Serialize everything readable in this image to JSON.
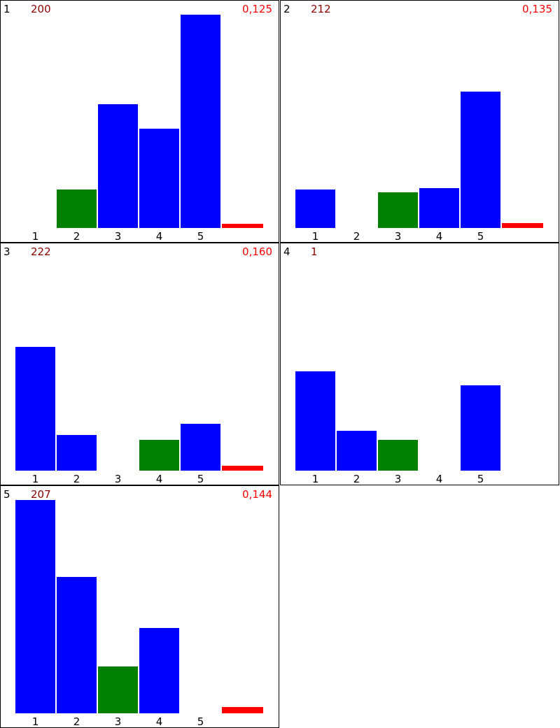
{
  "chart_data": [
    {
      "type": "bar",
      "panel_label": "1",
      "count_label": "200",
      "ratio_label": "0,125",
      "categories": [
        "1",
        "2",
        "3",
        "4",
        "5"
      ],
      "values": [
        0,
        55,
        177,
        142,
        305
      ],
      "colors": [
        "#0000ff",
        "#008000",
        "#0000ff",
        "#0000ff",
        "#0000ff"
      ],
      "red_marker": 6,
      "ylim": [
        0,
        305
      ]
    },
    {
      "type": "bar",
      "panel_label": "2",
      "count_label": "212",
      "ratio_label": "0,135",
      "categories": [
        "1",
        "2",
        "3",
        "4",
        "5"
      ],
      "values": [
        55,
        0,
        51,
        57,
        195
      ],
      "colors": [
        "#0000ff",
        "#0000ff",
        "#008000",
        "#0000ff",
        "#0000ff"
      ],
      "red_marker": 7,
      "ylim": [
        0,
        305
      ]
    },
    {
      "type": "bar",
      "panel_label": "3",
      "count_label": "222",
      "ratio_label": "0,160",
      "categories": [
        "1",
        "2",
        "3",
        "4",
        "5"
      ],
      "values": [
        177,
        51,
        0,
        44,
        67
      ],
      "colors": [
        "#0000ff",
        "#0000ff",
        "#0000ff",
        "#008000",
        "#0000ff"
      ],
      "red_marker": 7,
      "ylim": [
        0,
        305
      ]
    },
    {
      "type": "bar",
      "panel_label": "4",
      "count_label": "1",
      "ratio_label": "",
      "categories": [
        "1",
        "2",
        "3",
        "4",
        "5"
      ],
      "values": [
        142,
        57,
        44,
        0,
        122
      ],
      "colors": [
        "#0000ff",
        "#0000ff",
        "#008000",
        "#0000ff",
        "#0000ff"
      ],
      "red_marker": 0,
      "ylim": [
        0,
        305
      ]
    },
    {
      "type": "bar",
      "panel_label": "5",
      "count_label": "207",
      "ratio_label": "0,144",
      "categories": [
        "1",
        "2",
        "3",
        "4",
        "5"
      ],
      "values": [
        305,
        195,
        67,
        122,
        0
      ],
      "colors": [
        "#0000ff",
        "#0000ff",
        "#008000",
        "#0000ff",
        "#0000ff"
      ],
      "red_marker": 9,
      "ylim": [
        0,
        305
      ]
    }
  ],
  "colors": {
    "bar_blue": "#0000ff",
    "bar_green": "#008000",
    "marker_red": "#ff0000",
    "count_text": "#8b0000",
    "ratio_text": "#ff0000"
  }
}
